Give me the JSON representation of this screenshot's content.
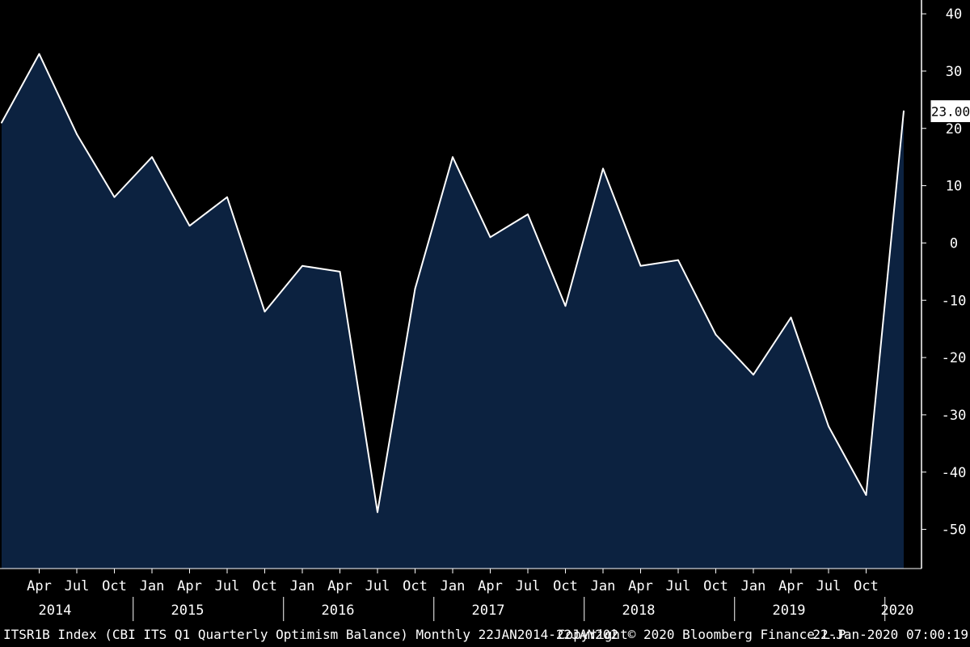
{
  "chart_data": {
    "type": "area",
    "x": [
      "Jan 2014",
      "Apr 2014",
      "Jul 2014",
      "Oct 2014",
      "Jan 2015",
      "Apr 2015",
      "Jul 2015",
      "Oct 2015",
      "Jan 2016",
      "Apr 2016",
      "Jul 2016",
      "Oct 2016",
      "Jan 2017",
      "Apr 2017",
      "Jul 2017",
      "Oct 2017",
      "Jan 2018",
      "Apr 2018",
      "Jul 2018",
      "Oct 2018",
      "Jan 2019",
      "Apr 2019",
      "Jul 2019",
      "Oct 2019",
      "Jan 2020"
    ],
    "series": [
      {
        "values": [
          21,
          33,
          19,
          8,
          15,
          3,
          8,
          -12,
          -4,
          -5,
          -47,
          -8,
          15,
          1,
          5,
          -11,
          13,
          -4,
          -3,
          -16,
          -23,
          -13,
          -32,
          -44,
          23
        ]
      }
    ],
    "ylim": [
      -55,
      41
    ],
    "y_ticks": [
      "40",
      "30",
      "20",
      "10",
      "0",
      "-10",
      "-20",
      "-30",
      "-40",
      "-50"
    ],
    "x_month_labels": [
      "Apr",
      "Jul",
      "Oct",
      "Jan",
      "Apr",
      "Jul",
      "Oct",
      "Jan",
      "Apr",
      "Jul",
      "Oct",
      "Jan",
      "Apr",
      "Jul",
      "Oct",
      "Jan",
      "Apr",
      "Jul",
      "Oct",
      "Jan",
      "Apr",
      "Jul",
      "Oct"
    ],
    "x_year_labels": [
      "2014",
      "2015",
      "2016",
      "2017",
      "2018",
      "2019",
      "2020"
    ],
    "last_value_label": "23.00",
    "grid": false,
    "y_axis_position": "right",
    "colors": {
      "fill": "#0c2240",
      "line": "#ffffff",
      "background": "#000000"
    }
  },
  "footer": {
    "left": "ITSR1B Index (CBI ITS Q1 Quarterly Optimism Balance)  Monthly 22JAN2014-22JAN202",
    "middle": "Copyright© 2020 Bloomberg Finance L.P.",
    "right": "22-Jan-2020 07:00:19"
  }
}
